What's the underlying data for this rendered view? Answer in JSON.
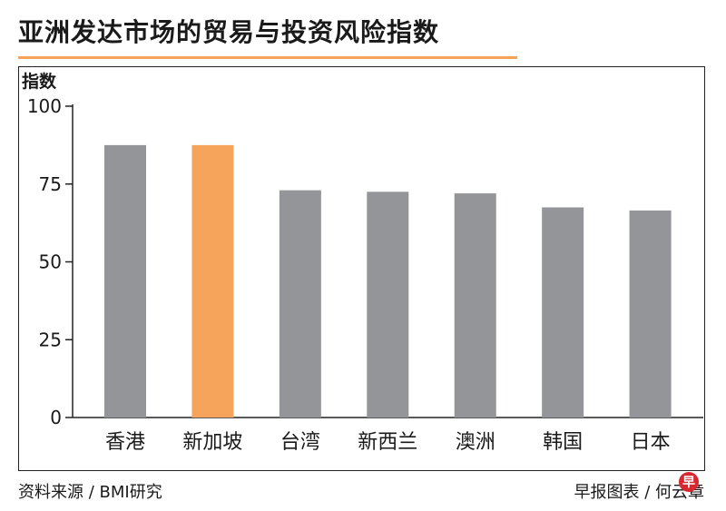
{
  "title": "亚洲发达市场的贸易与投资风险指数",
  "source": "资料来源 / BMI研究",
  "credit": "早报图表 / 何云章",
  "logo_text": "早",
  "colors": {
    "accent": "#f6a45c",
    "bar_default": "#939598",
    "bar_highlight": "#f6a45c",
    "axis": "#222222"
  },
  "chart_data": {
    "type": "bar",
    "ylabel": "指数",
    "xlabel": "",
    "ylim": [
      0,
      100
    ],
    "yticks": [
      0,
      25,
      50,
      75,
      100
    ],
    "grid": false,
    "categories": [
      "香港",
      "新加坡",
      "台湾",
      "新西兰",
      "澳洲",
      "韩国",
      "日本"
    ],
    "values": [
      87.5,
      87.5,
      73,
      72.5,
      72,
      67.5,
      66.5
    ],
    "highlight": "新加坡"
  }
}
